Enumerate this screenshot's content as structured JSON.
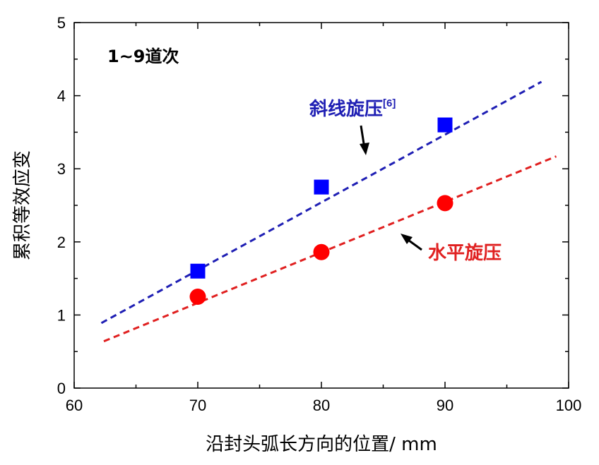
{
  "chart_data": {
    "type": "scatter",
    "title": "",
    "xlabel": "沿封头弧长方向的位置/ mm",
    "ylabel": "累积等效应变",
    "xlim": [
      60,
      100
    ],
    "ylim": [
      0,
      5
    ],
    "xticks": [
      60,
      70,
      80,
      90,
      100
    ],
    "yticks": [
      0,
      1,
      2,
      3,
      4,
      5
    ],
    "annotation_text": "1~9道次",
    "series": [
      {
        "name": "斜线旋压[6]",
        "label_main": "斜线旋压",
        "label_sup": "[6]",
        "marker": "square",
        "color": "#0000ff",
        "x": [
          70,
          80,
          90
        ],
        "y": [
          1.6,
          2.75,
          3.6
        ],
        "fit": {
          "x": [
            62.2,
            97.8
          ],
          "y": [
            0.89,
            4.19
          ],
          "color": "#1f1fb4"
        }
      },
      {
        "name": "水平旋压",
        "label_main": "水平旋压",
        "label_sup": "",
        "marker": "circle",
        "color": "#ff0000",
        "x": [
          70,
          80,
          90
        ],
        "y": [
          1.25,
          1.86,
          2.53
        ],
        "fit": {
          "x": [
            62.4,
            99.0
          ],
          "y": [
            0.64,
            3.17
          ],
          "color": "#e02020"
        }
      }
    ]
  }
}
